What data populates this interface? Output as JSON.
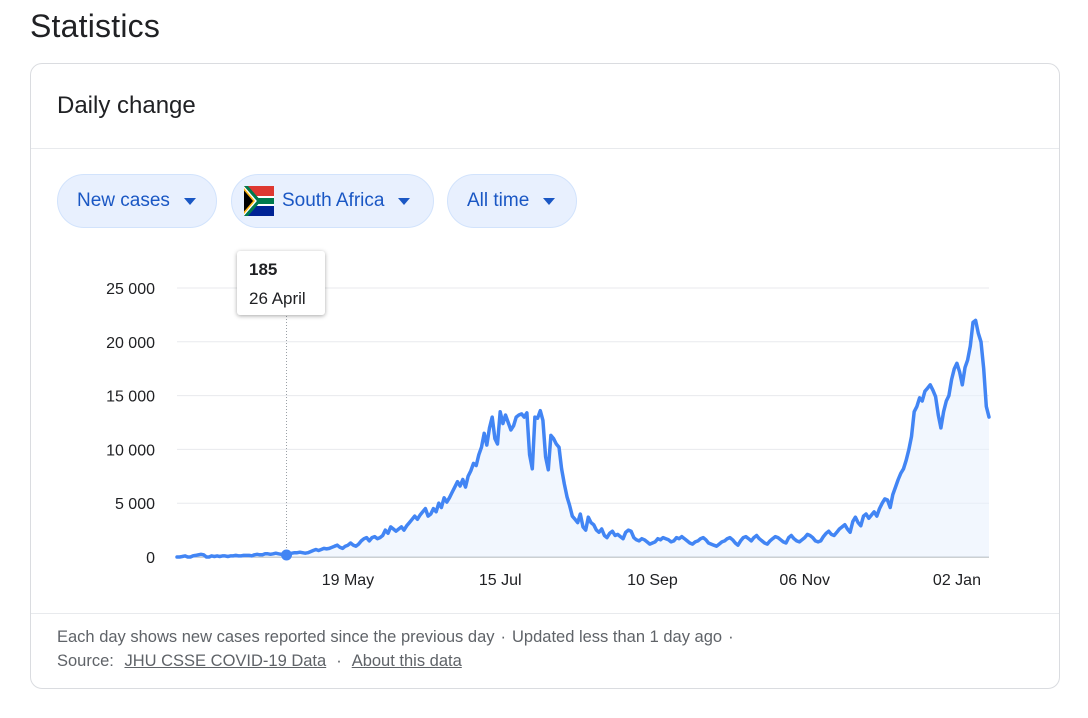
{
  "page_title": "Statistics",
  "card": {
    "title": "Daily change",
    "filters": {
      "metric": "New cases",
      "region": "South Africa",
      "range": "All time"
    },
    "tooltip": {
      "value": "185",
      "date": "26 April"
    },
    "footer": {
      "note": "Each day shows new cases reported since the previous day",
      "separator": "·",
      "updated": "Updated less than 1 day ago",
      "source_label": "Source:",
      "source_link": "JHU CSSE COVID-19 Data",
      "about_link": "About this data"
    }
  },
  "colors": {
    "line": "#4285f4",
    "area": "#e8f0fe",
    "chip_text": "#1a57c4"
  },
  "icons": {
    "dropdown": "caret-down-icon",
    "flag": "south-africa-flag-icon"
  },
  "chart_data": {
    "type": "area",
    "title": "",
    "xlabel": "",
    "ylabel": "",
    "ylim": [
      0,
      25000
    ],
    "yticks": [
      0,
      5000,
      10000,
      15000,
      20000,
      25000
    ],
    "ytick_labels": [
      "0",
      "5 000",
      "10 000",
      "15 000",
      "20 000",
      "25 000"
    ],
    "xticks": [
      {
        "label": "19 May",
        "index": 64
      },
      {
        "label": "15 Jul",
        "index": 121
      },
      {
        "label": "10 Sep",
        "index": 178
      },
      {
        "label": "06 Nov",
        "index": 235
      },
      {
        "label": "02 Jan",
        "index": 292
      }
    ],
    "x_start": "05 March",
    "x_end": "11 January",
    "highlight": {
      "index": 41,
      "value": 185,
      "label": "26 April"
    },
    "grid": true,
    "series": [
      {
        "values": [
          0,
          0,
          50,
          100,
          0,
          0,
          100,
          150,
          200,
          250,
          200,
          0,
          0,
          100,
          50,
          100,
          50,
          100,
          100,
          50,
          100,
          100,
          150,
          100,
          100,
          150,
          150,
          150,
          100,
          200,
          250,
          200,
          200,
          300,
          300,
          250,
          300,
          350,
          300,
          250,
          300,
          185,
          300,
          350,
          400,
          400,
          450,
          400,
          350,
          400,
          500,
          600,
          700,
          600,
          700,
          800,
          750,
          800,
          900,
          1000,
          1100,
          900,
          800,
          1000,
          1100,
          1300,
          1100,
          1000,
          1200,
          1500,
          1700,
          1800,
          1500,
          1800,
          1900,
          1700,
          1800,
          2000,
          2500,
          2200,
          2800,
          2600,
          2400,
          2600,
          2800,
          2500,
          2900,
          3200,
          3500,
          3800,
          3500,
          3900,
          4200,
          4500,
          3800,
          4000,
          4500,
          4200,
          5000,
          4600,
          5500,
          5100,
          5500,
          6000,
          6500,
          7000,
          6600,
          7200,
          6500,
          7500,
          8000,
          8700,
          8500,
          9500,
          10200,
          11500,
          10400,
          12000,
          13000,
          11000,
          10500,
          13500,
          12400,
          13200,
          12500,
          11800,
          12200,
          13000,
          13200,
          13300,
          13000,
          13400,
          9500,
          8200,
          13000,
          12900,
          13600,
          12700,
          9300,
          8100,
          11300,
          11000,
          10500,
          10200,
          8200,
          6800,
          5600,
          4800,
          3800,
          3500,
          3200,
          4000,
          2800,
          2500,
          3700,
          3200,
          3000,
          2500,
          2300,
          2600,
          2000,
          1800,
          2200,
          2400,
          2000,
          2100,
          1900,
          1700,
          2300,
          2500,
          2400,
          1800,
          1600,
          1500,
          1700,
          1600,
          1400,
          1200,
          1300,
          1400,
          1700,
          1600,
          1800,
          1700,
          1600,
          1400,
          1500,
          1800,
          1700,
          1900,
          1700,
          1500,
          1300,
          1200,
          1400,
          1500,
          1700,
          1800,
          1600,
          1300,
          1200,
          1100,
          1000,
          1200,
          1400,
          1500,
          1700,
          1800,
          1600,
          1300,
          1100,
          1500,
          1800,
          1900,
          1700,
          1500,
          1800,
          2000,
          1700,
          1500,
          1300,
          1200,
          1500,
          1700,
          1900,
          1800,
          1600,
          1400,
          1300,
          1800,
          2000,
          1700,
          1500,
          1400,
          1600,
          1800,
          2100,
          2000,
          1800,
          1500,
          1400,
          1500,
          1900,
          2200,
          2400,
          2100,
          2000,
          2300,
          2600,
          2800,
          3000,
          2600,
          2300,
          3300,
          3700,
          3200,
          2900,
          3800,
          4000,
          3600,
          3900,
          4200,
          3800,
          4500,
          5000,
          5400,
          5300,
          4600,
          5800,
          6500,
          7200,
          7800,
          8200,
          9000,
          10000,
          11200,
          13500,
          14000,
          14800,
          14500,
          15400,
          15700,
          16000,
          15500,
          14900,
          13200,
          12000,
          13500,
          14500,
          15000,
          16500,
          17500,
          18000,
          17200,
          16000,
          17600,
          18300,
          19600,
          21800,
          22000,
          20800,
          20000,
          17500,
          14000,
          13000
        ]
      }
    ]
  }
}
